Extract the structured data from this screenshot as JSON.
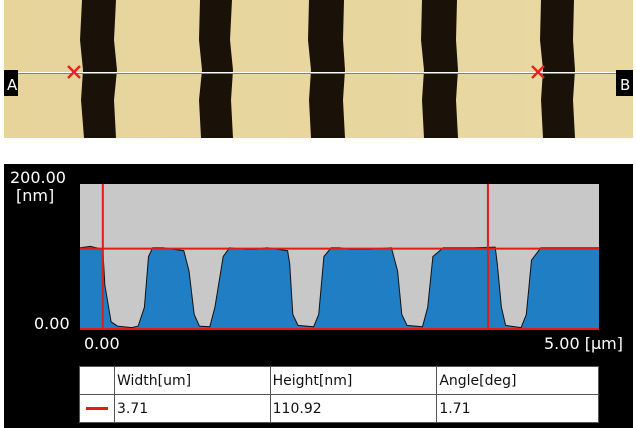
{
  "image": {
    "marker_left_label": "A",
    "marker_right_label": "B",
    "line_color": "#ffffff",
    "cursor_color": "#e8231f"
  },
  "profile": {
    "y_max_label": "200.00",
    "y_unit_label": "[nm]",
    "y_min_label": "0.00",
    "x_min_label": "0.00",
    "x_max_label": "5.00 [µm]",
    "fill_color": "#1f7ec4",
    "background_color": "#c8c8c8",
    "cursor_color": "#e31b1b"
  },
  "chart_data": {
    "type": "area",
    "xlabel": "[µm]",
    "ylabel": "[nm]",
    "xlim": [
      0,
      5
    ],
    "ylim": [
      0,
      200
    ],
    "x": [
      0.0,
      0.1,
      0.22,
      0.24,
      0.3,
      0.36,
      0.5,
      0.56,
      0.62,
      0.66,
      0.7,
      0.8,
      0.9,
      1.0,
      1.05,
      1.1,
      1.15,
      1.25,
      1.3,
      1.38,
      1.44,
      1.5,
      1.6,
      1.7,
      1.8,
      1.9,
      2.0,
      2.02,
      2.05,
      2.1,
      2.25,
      2.3,
      2.35,
      2.42,
      2.5,
      2.6,
      2.8,
      3.0,
      3.06,
      3.1,
      3.15,
      3.3,
      3.35,
      3.4,
      3.5,
      3.6,
      3.8,
      4.0,
      4.02,
      4.06,
      4.1,
      4.25,
      4.3,
      4.35,
      4.44,
      4.5,
      4.6,
      4.8,
      5.0
    ],
    "series": [
      {
        "values": [
          112,
          114,
          110,
          60,
          10,
          4,
          2,
          4,
          30,
          100,
          112,
          112,
          110,
          108,
          80,
          20,
          4,
          3,
          30,
          100,
          112,
          111,
          110,
          110,
          112,
          110,
          108,
          90,
          20,
          5,
          3,
          20,
          100,
          112,
          112,
          110,
          110,
          112,
          80,
          20,
          5,
          3,
          30,
          100,
          112,
          112,
          112,
          113,
          90,
          30,
          5,
          2,
          20,
          95,
          112,
          112,
          112,
          112,
          112
        ]
      }
    ],
    "cursors_x": [
      0.22,
      3.93
    ],
    "reference_y": 110.92
  },
  "table": {
    "headers": [
      "Width[um]",
      "Height[nm]",
      "Angle[deg]"
    ],
    "row": [
      "3.71",
      "110.92",
      "1.71"
    ],
    "marker_color": "#e31b1b"
  }
}
